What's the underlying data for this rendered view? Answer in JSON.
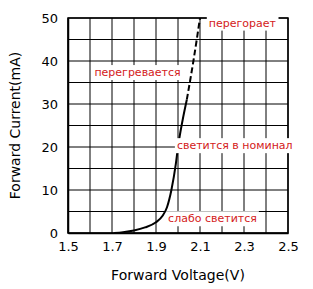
{
  "chart_data": {
    "type": "line",
    "xlabel": "Forward Voltage(V)",
    "ylabel": "Forward Current(mA)",
    "xlim": [
      1.5,
      2.5
    ],
    "ylim": [
      0,
      50
    ],
    "xticks": [
      1.5,
      1.7,
      1.9,
      2.1,
      2.3,
      2.5
    ],
    "yticks": [
      0,
      10,
      20,
      30,
      40,
      50
    ],
    "grid": true,
    "series": [
      {
        "color": "#000000",
        "line_style": "solid",
        "x": [
          1.71,
          1.75,
          1.8,
          1.85,
          1.9,
          1.93,
          1.95,
          1.97,
          1.99,
          2.0,
          2.02,
          2.04
        ],
        "values": [
          0,
          0.2,
          0.6,
          1.3,
          2.5,
          4,
          6,
          10,
          16,
          20,
          26,
          31
        ]
      },
      {
        "color": "#000000",
        "line_style": "dashed",
        "x": [
          2.04,
          2.07,
          2.1
        ],
        "values": [
          31,
          40,
          50
        ]
      }
    ],
    "annotations": [
      {
        "text": "перегорает",
        "x": 2.14,
        "y": 48
      },
      {
        "text": "перегревается",
        "x": 1.62,
        "y": 36.5
      },
      {
        "text": "светится в номинал",
        "x": 1.995,
        "y": 19.5
      },
      {
        "text": "слабо светится",
        "x": 1.955,
        "y": 2.5
      }
    ]
  }
}
